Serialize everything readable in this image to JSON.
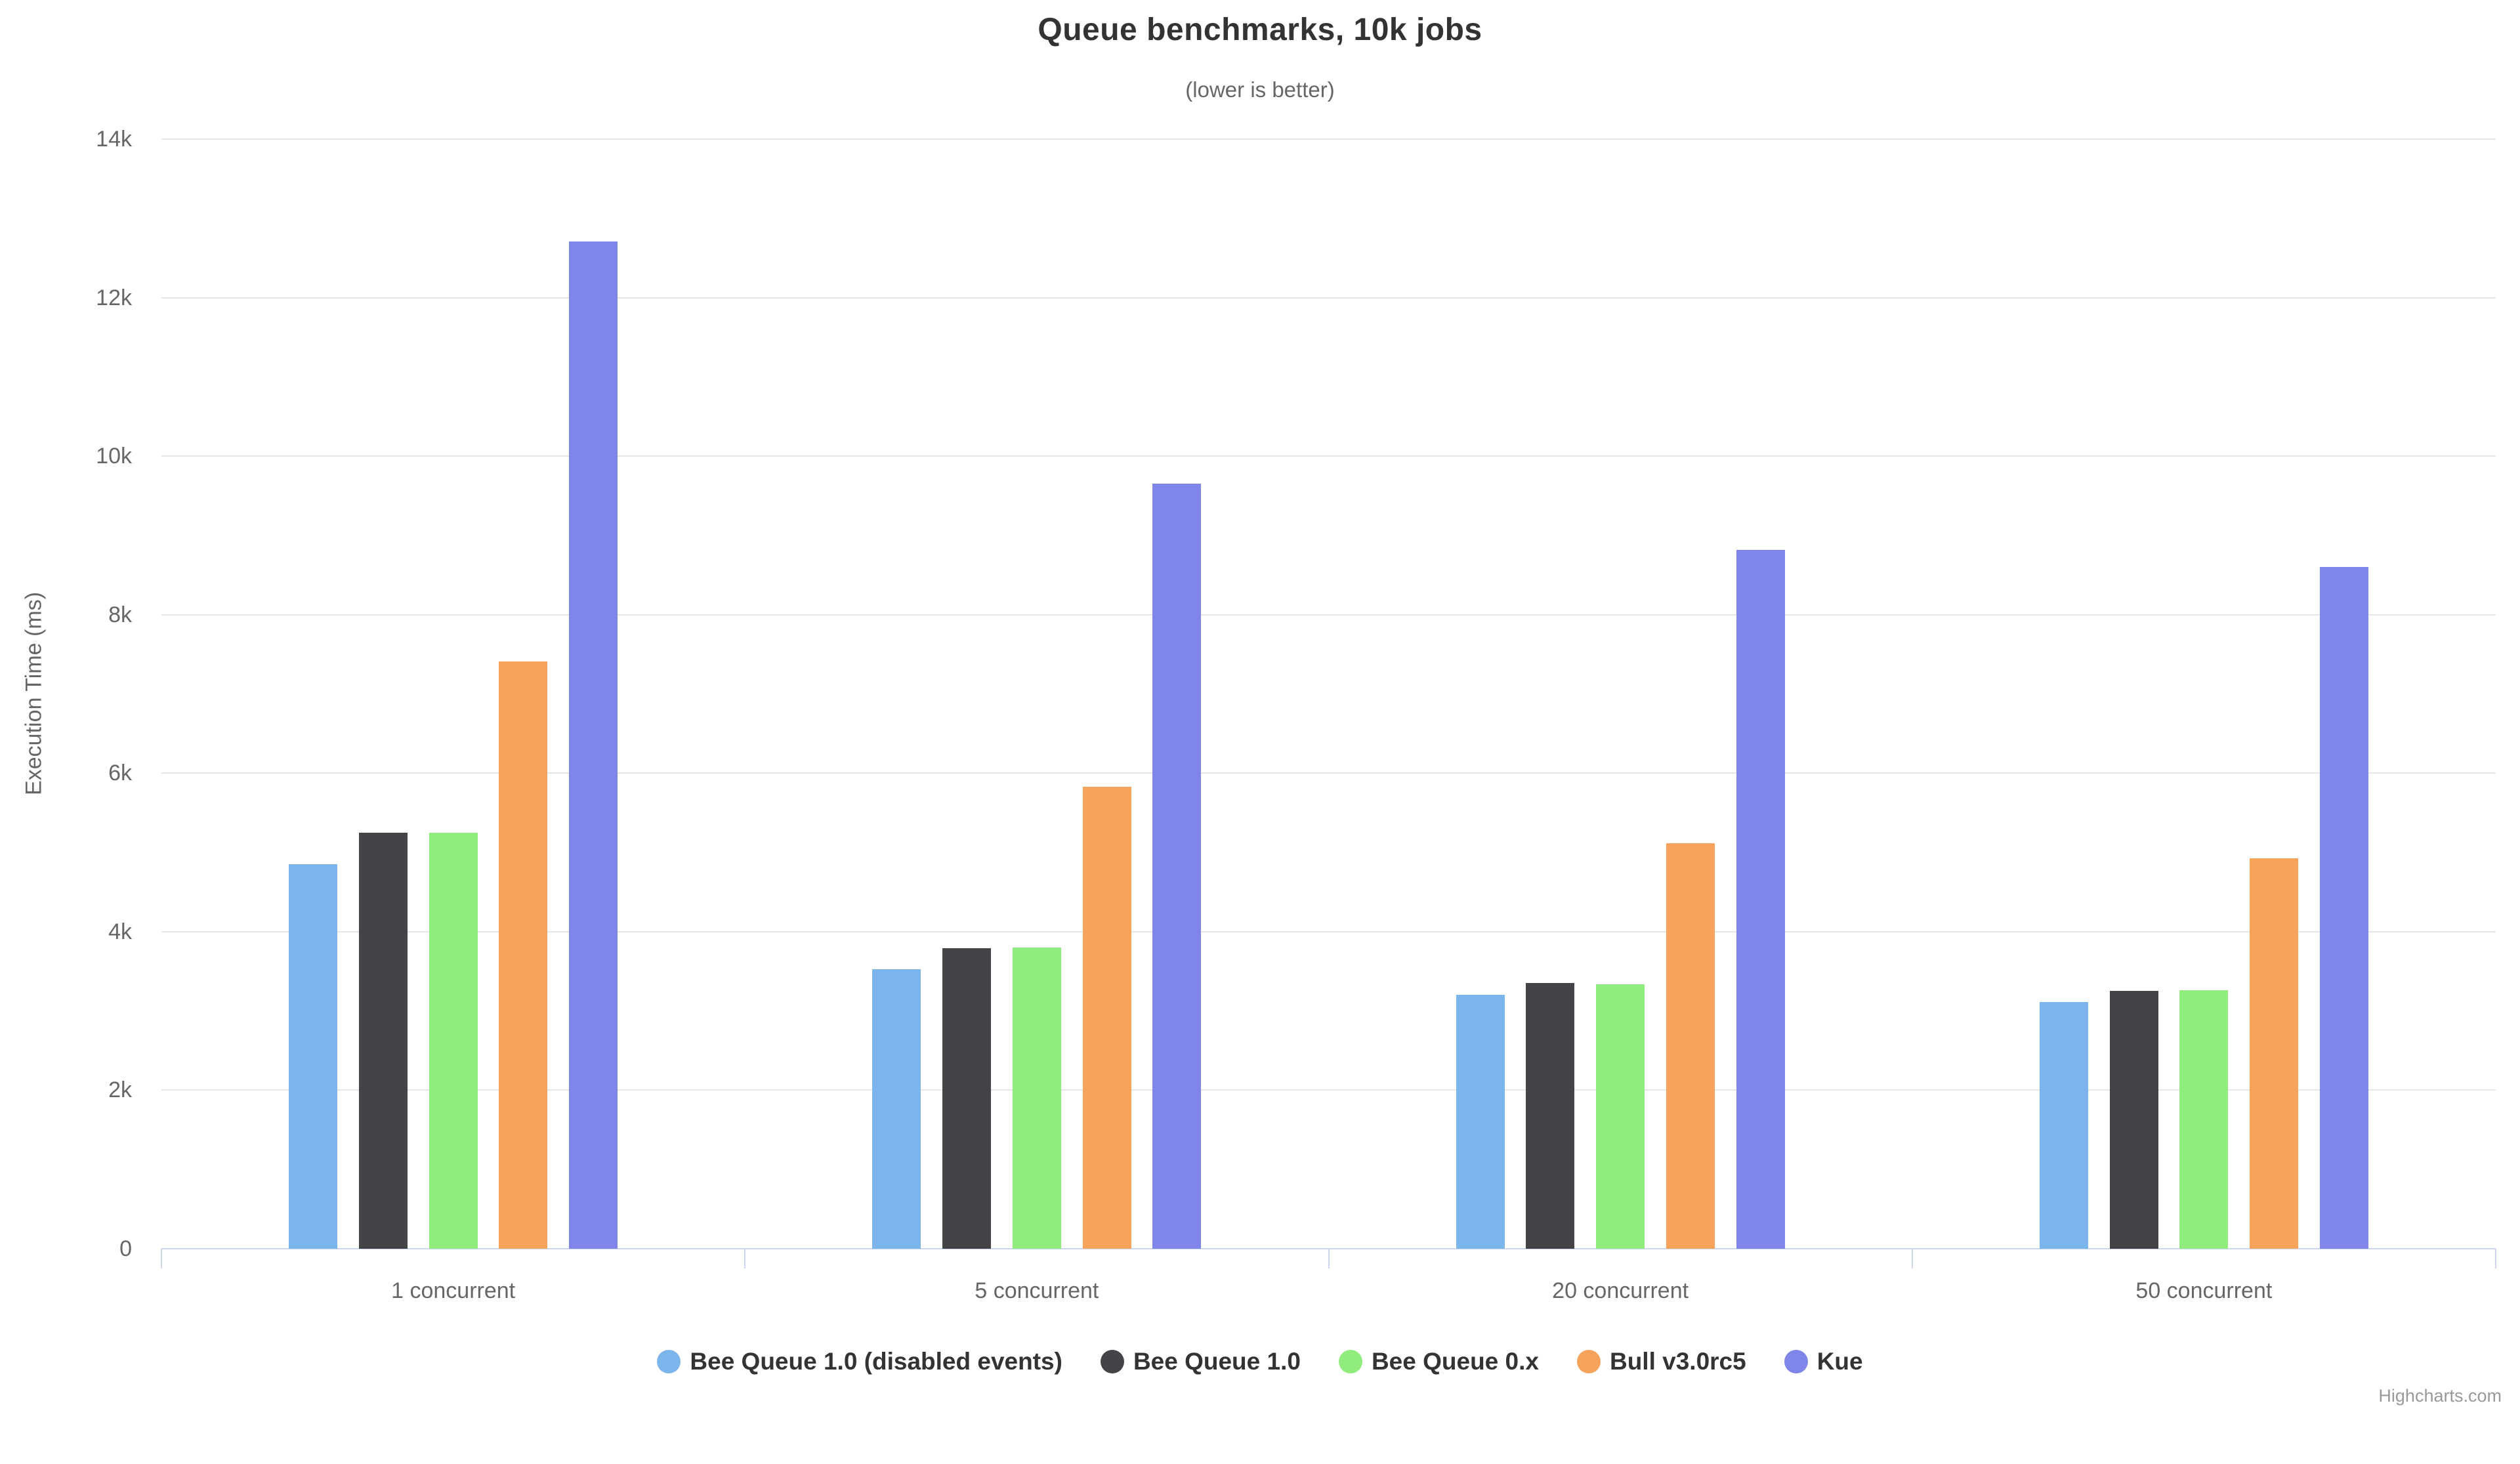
{
  "chart": {
    "colors": {
      "background": "#ffffff",
      "grid": "#e6e6e6",
      "axis": "#ccd6eb",
      "title_text": "#333333",
      "subtitle_text": "#666666",
      "axis_label_text": "#666666",
      "legend_text": "#333333",
      "credits_text": "#999999"
    }
  },
  "chart_data": {
    "type": "bar",
    "orientation": "vertical",
    "title": "Queue benchmarks, 10k jobs",
    "subtitle": "(lower is better)",
    "xlabel": "",
    "ylabel": "Execution Time (ms)",
    "categories": [
      "1 concurrent",
      "5 concurrent",
      "20 concurrent",
      "50 concurrent"
    ],
    "series": [
      {
        "name": "Bee Queue 1.0 (disabled events)",
        "color": "#7cb5ec",
        "values": [
          4850,
          3530,
          3200,
          3110
        ]
      },
      {
        "name": "Bee Queue 1.0",
        "color": "#434348",
        "values": [
          5250,
          3790,
          3350,
          3250
        ]
      },
      {
        "name": "Bee Queue 0.x",
        "color": "#90ed7d",
        "values": [
          5250,
          3800,
          3340,
          3260
        ]
      },
      {
        "name": "Bull v3.0rc5",
        "color": "#f7a35c",
        "values": [
          7410,
          5830,
          5120,
          4930
        ]
      },
      {
        "name": "Kue",
        "color": "#8085e9",
        "values": [
          12710,
          9650,
          8820,
          8600
        ]
      }
    ],
    "ylim": [
      0,
      14000
    ],
    "ytick_step": 2000,
    "ytick_labels": [
      "0",
      "2k",
      "4k",
      "6k",
      "8k",
      "10k",
      "12k",
      "14k"
    ],
    "grid": true,
    "legend_position": "bottom",
    "credits": "Highcharts.com"
  }
}
